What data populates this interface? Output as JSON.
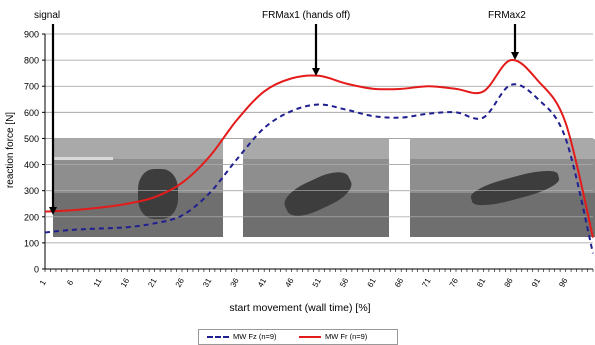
{
  "chart_data": {
    "type": "line",
    "annotations": {
      "signal": "signal",
      "frmax1": "FRMax1 (hands off)",
      "frmax2": "FRMax2"
    },
    "xlabel": "start movement (wall time) [%]",
    "ylabel": "reaction force [N]",
    "ylim": [
      0,
      900
    ],
    "yticks": [
      0,
      100,
      200,
      300,
      400,
      500,
      600,
      700,
      800,
      900
    ],
    "xlim": [
      1,
      101
    ],
    "xticks": [
      1,
      6,
      11,
      16,
      21,
      26,
      31,
      36,
      41,
      46,
      51,
      56,
      61,
      66,
      71,
      76,
      81,
      86,
      91,
      96
    ],
    "grid": true,
    "legend": "bottom",
    "x": [
      1,
      6,
      11,
      16,
      21,
      26,
      31,
      36,
      41,
      46,
      51,
      56,
      61,
      66,
      71,
      76,
      81,
      86,
      91,
      96,
      101
    ],
    "series": [
      {
        "name": "MW Fz (n=9)",
        "color": "#1f1f8f",
        "style": "dashed",
        "values": [
          140,
          150,
          155,
          160,
          175,
          205,
          290,
          420,
          540,
          605,
          630,
          610,
          585,
          580,
          595,
          600,
          580,
          705,
          650,
          500,
          60
        ]
      },
      {
        "name": "MW Fr (n=9)",
        "color": "#e41b1b",
        "style": "solid",
        "values": [
          220,
          225,
          235,
          250,
          275,
          330,
          430,
          570,
          680,
          730,
          740,
          710,
          690,
          690,
          700,
          690,
          680,
          800,
          720,
          560,
          120
        ]
      }
    ]
  }
}
